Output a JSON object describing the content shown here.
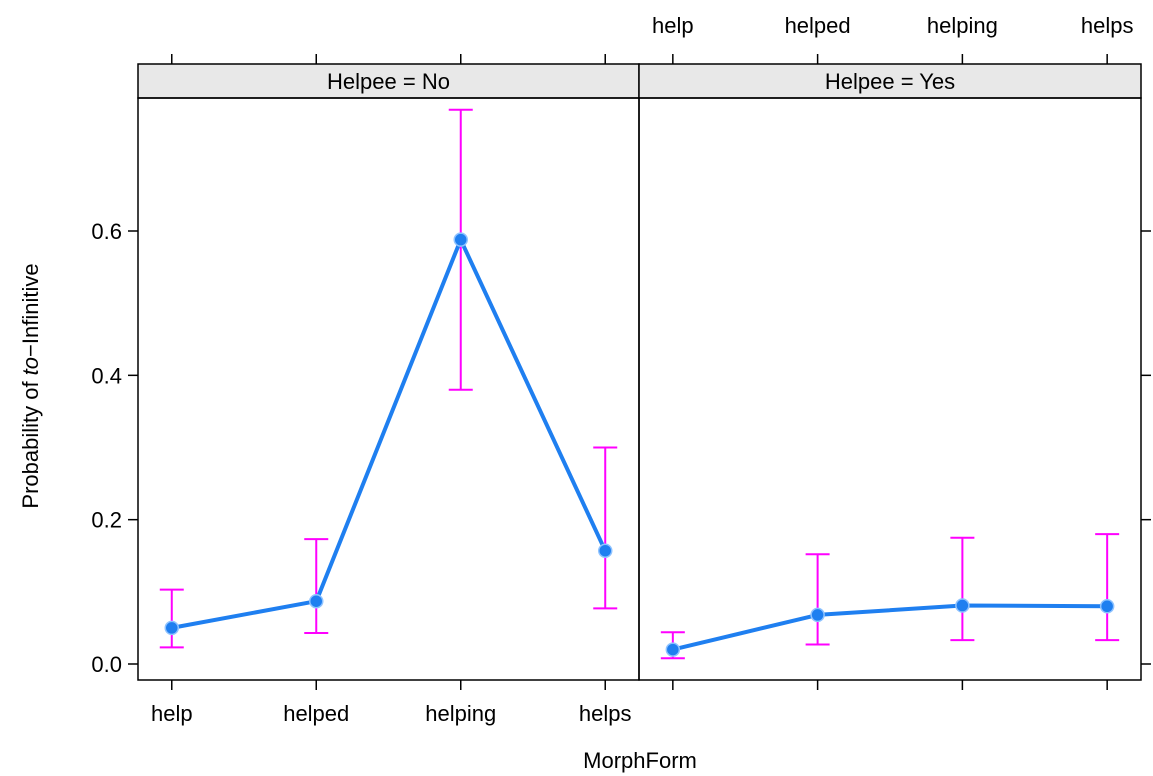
{
  "chart_data": {
    "type": "line",
    "xlabel": "MorphForm",
    "ylabel_prefix": "Probability of ",
    "ylabel_italic": "to",
    "ylabel_suffix": "−Infinitive",
    "categories": [
      "help",
      "helped",
      "helping",
      "helps"
    ],
    "y_ticks": [
      "0.0",
      "0.2",
      "0.4",
      "0.6"
    ],
    "y_tick_values": [
      0.0,
      0.2,
      0.4,
      0.6
    ],
    "ylim": [
      -0.02,
      0.785
    ],
    "colors": {
      "line": "#1f7ff0",
      "errorbar": "#ff00ff",
      "strip": "#e8e8e8"
    },
    "panels": [
      {
        "strip": "Helpee = No",
        "values": [
          0.05,
          0.087,
          0.588,
          0.157
        ],
        "lower": [
          0.023,
          0.043,
          0.38,
          0.077
        ],
        "upper": [
          0.103,
          0.173,
          0.768,
          0.3
        ]
      },
      {
        "strip": "Helpee = Yes",
        "values": [
          0.02,
          0.068,
          0.081,
          0.08
        ],
        "lower": [
          0.008,
          0.027,
          0.033,
          0.033
        ],
        "upper": [
          0.044,
          0.152,
          0.175,
          0.18
        ]
      }
    ]
  }
}
